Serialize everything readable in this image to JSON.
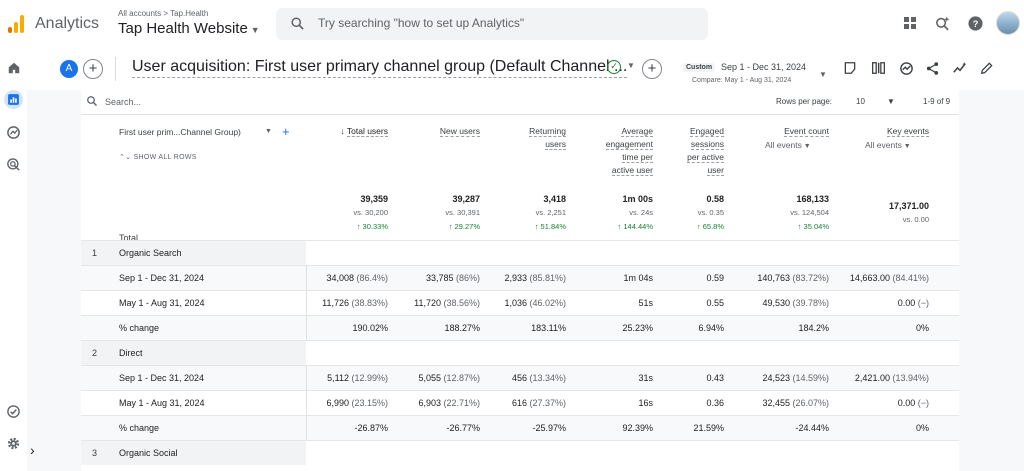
{
  "app": {
    "name": "Analytics",
    "breadcrumb": "All accounts > Tap.Health",
    "property": "Tap Health Website",
    "search_placeholder": "Try searching \"how to set up Analytics\""
  },
  "report": {
    "comparison_chip": "A",
    "title": "User acquisition: First user primary channel group (Default Channel ...",
    "date_badge": "Custom",
    "date_range": "Sep 1 - Dec 31, 2024",
    "compare_range": "Compare: May 1 - Aug 31, 2024"
  },
  "table": {
    "search_placeholder": "Search...",
    "rows_per_page_label": "Rows per page:",
    "rows_per_page": "10",
    "pager": "1-9 of 9",
    "dimension_select": "First user prim...Channel Group)",
    "show_all_rows": "SHOW ALL ROWS",
    "columns": [
      {
        "lines": [
          "Total users"
        ],
        "sorted": true
      },
      {
        "lines": [
          "New users"
        ]
      },
      {
        "lines": [
          "Returning",
          "users"
        ]
      },
      {
        "lines": [
          "Average",
          "engagement",
          "time per",
          "active user"
        ]
      },
      {
        "lines": [
          "Engaged",
          "sessions",
          "per active",
          "user"
        ]
      },
      {
        "lines": [
          "Event count"
        ],
        "sub": "All events"
      },
      {
        "lines": [
          "Key events"
        ],
        "sub": "All events"
      }
    ],
    "total_label": "Total",
    "totals": [
      {
        "value": "39,359",
        "vs": "vs. 30,200",
        "change": "↑ 30.33%"
      },
      {
        "value": "39,287",
        "vs": "vs. 30,391",
        "change": "↑ 29.27%"
      },
      {
        "value": "3,418",
        "vs": "vs. 2,251",
        "change": "↑ 51.84%"
      },
      {
        "value": "1m 00s",
        "vs": "vs. 24s",
        "change": "↑ 144.44%"
      },
      {
        "value": "0.58",
        "vs": "vs. 0.35",
        "change": "↑ 65.8%"
      },
      {
        "value": "168,133",
        "vs": "vs. 124,504",
        "change": "↑ 35.04%"
      },
      {
        "value": "17,371.00",
        "vs": "vs. 0.00",
        "change": ""
      }
    ],
    "rows": [
      {
        "type": "group",
        "index": "1",
        "label": "Organic Search"
      },
      {
        "type": "sub",
        "label": "Sep 1 - Dec 31, 2024",
        "cells": [
          [
            "34,008",
            " (86.4%)"
          ],
          [
            "33,785",
            " (86%)"
          ],
          [
            "2,933",
            " (85.81%)"
          ],
          [
            "1m 04s",
            ""
          ],
          [
            "0.59",
            ""
          ],
          [
            "140,763",
            " (83.72%)"
          ],
          [
            "14,663.00",
            " (84.41%)"
          ]
        ]
      },
      {
        "type": "sub",
        "label": "May 1 - Aug 31, 2024",
        "cells": [
          [
            "11,726",
            " (38.83%)"
          ],
          [
            "11,720",
            " (38.56%)"
          ],
          [
            "1,036",
            " (46.02%)"
          ],
          [
            "51s",
            ""
          ],
          [
            "0.55",
            ""
          ],
          [
            "49,530",
            " (39.78%)"
          ],
          [
            "0.00",
            " (−)"
          ]
        ]
      },
      {
        "type": "sub",
        "label": "% change",
        "cells": [
          [
            "190.02%",
            ""
          ],
          [
            "188.27%",
            ""
          ],
          [
            "183.11%",
            ""
          ],
          [
            "25.23%",
            ""
          ],
          [
            "6.94%",
            ""
          ],
          [
            "184.2%",
            ""
          ],
          [
            "0%",
            ""
          ]
        ]
      },
      {
        "type": "group",
        "index": "2",
        "label": "Direct"
      },
      {
        "type": "sub",
        "label": "Sep 1 - Dec 31, 2024",
        "cells": [
          [
            "5,112",
            " (12.99%)"
          ],
          [
            "5,055",
            " (12.87%)"
          ],
          [
            "456",
            " (13.34%)"
          ],
          [
            "31s",
            ""
          ],
          [
            "0.43",
            ""
          ],
          [
            "24,523",
            " (14.59%)"
          ],
          [
            "2,421.00",
            " (13.94%)"
          ]
        ]
      },
      {
        "type": "sub",
        "label": "May 1 - Aug 31, 2024",
        "cells": [
          [
            "6,990",
            " (23.15%)"
          ],
          [
            "6,903",
            " (22.71%)"
          ],
          [
            "616",
            " (27.37%)"
          ],
          [
            "16s",
            ""
          ],
          [
            "0.36",
            ""
          ],
          [
            "32,455",
            " (26.07%)"
          ],
          [
            "0.00",
            " (−)"
          ]
        ]
      },
      {
        "type": "sub",
        "label": "% change",
        "cells": [
          [
            "-26.87%",
            ""
          ],
          [
            "-26.77%",
            ""
          ],
          [
            "-25.97%",
            ""
          ],
          [
            "92.39%",
            ""
          ],
          [
            "21.59%",
            ""
          ],
          [
            "-24.44%",
            ""
          ],
          [
            "0%",
            ""
          ]
        ]
      },
      {
        "type": "group",
        "index": "3",
        "label": "Organic Social"
      }
    ]
  },
  "colors": {
    "accent": "#1a73e8",
    "positive": "#188038",
    "logo_orange": "#f9ab00",
    "logo_dark_orange": "#e37400"
  }
}
